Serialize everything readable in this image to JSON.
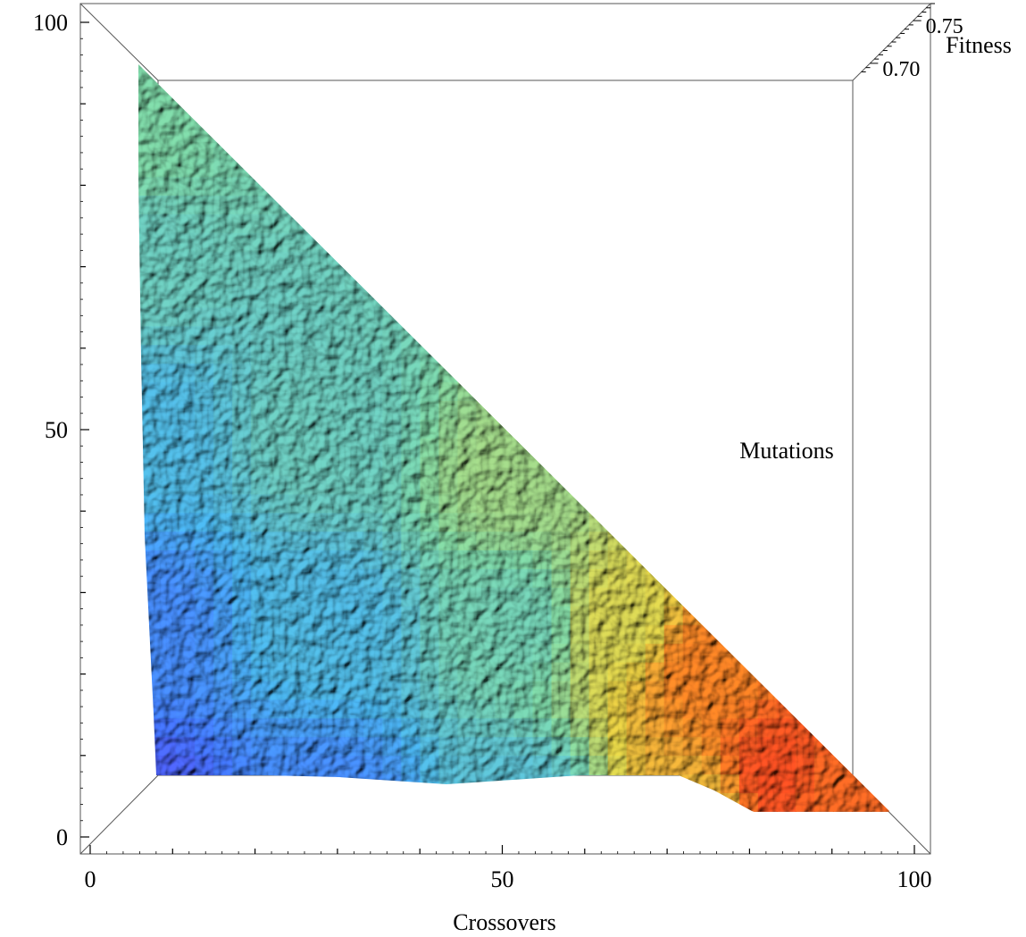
{
  "chart_data": {
    "type": "surface",
    "title": "",
    "xlabel": "Crossovers",
    "ylabel": "Mutations",
    "zlabel": "Fitness",
    "xlim": [
      0,
      100
    ],
    "ylim": [
      0,
      100
    ],
    "zlim": [
      0.68,
      0.77
    ],
    "x_ticks": [
      "0",
      "50",
      "100"
    ],
    "y_ticks": [
      "0",
      "50",
      "100"
    ],
    "z_ticks": [
      "0.70",
      "0.75"
    ],
    "domain": "crossovers + mutations <= 100",
    "colormap": [
      "#5a2fd6",
      "#3f6ff0",
      "#44a8dc",
      "#74c79a",
      "#d4c440",
      "#e87a22",
      "#e8321e"
    ],
    "fitness_samples": [
      {
        "crossovers": 0,
        "mutations": 0,
        "fitness": 0.69
      },
      {
        "crossovers": 0,
        "mutations": 25,
        "fitness": 0.7
      },
      {
        "crossovers": 0,
        "mutations": 50,
        "fitness": 0.712
      },
      {
        "crossovers": 0,
        "mutations": 75,
        "fitness": 0.72
      },
      {
        "crossovers": 0,
        "mutations": 90,
        "fitness": 0.725
      },
      {
        "crossovers": 25,
        "mutations": 0,
        "fitness": 0.7
      },
      {
        "crossovers": 25,
        "mutations": 25,
        "fitness": 0.712
      },
      {
        "crossovers": 25,
        "mutations": 50,
        "fitness": 0.72
      },
      {
        "crossovers": 50,
        "mutations": 0,
        "fitness": 0.715
      },
      {
        "crossovers": 50,
        "mutations": 25,
        "fitness": 0.722
      },
      {
        "crossovers": 50,
        "mutations": 45,
        "fitness": 0.73
      },
      {
        "crossovers": 65,
        "mutations": 25,
        "fitness": 0.738
      },
      {
        "crossovers": 75,
        "mutations": 0,
        "fitness": 0.745
      },
      {
        "crossovers": 75,
        "mutations": 20,
        "fitness": 0.755
      },
      {
        "crossovers": 85,
        "mutations": 5,
        "fitness": 0.765
      },
      {
        "crossovers": 93,
        "mutations": 3,
        "fitness": 0.76
      }
    ]
  }
}
